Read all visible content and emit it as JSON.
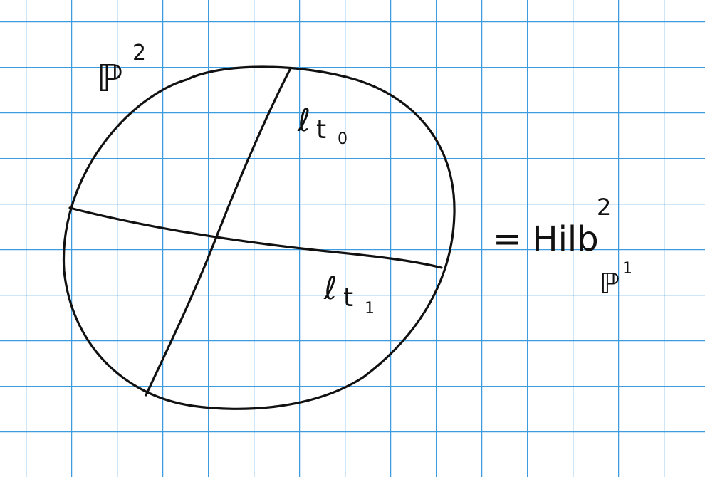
{
  "space_label": {
    "base": "ℙ",
    "sup": "2"
  },
  "lines": [
    {
      "base": "ℓ",
      "sub": "t",
      "subsub": "0"
    },
    {
      "base": "ℓ",
      "sub": "t",
      "subsub": "1"
    }
  ],
  "equation": {
    "text": "= Hilb",
    "sup": "2",
    "sub_base": "ℙ",
    "sub_sup": "1"
  }
}
